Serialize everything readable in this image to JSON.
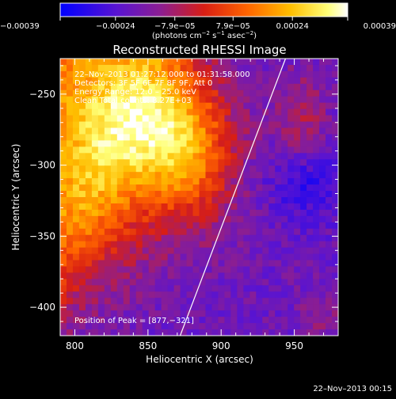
{
  "chart_data": {
    "type": "heatmap",
    "title": "Reconstructed RHESSI Image",
    "xlabel": "Heliocentric X (arcsec)",
    "ylabel": "Heliocentric Y (arcsec)",
    "xlim": [
      790,
      980
    ],
    "ylim": [
      -420,
      -225
    ],
    "x_ticks": [
      800,
      850,
      900,
      950
    ],
    "y_ticks": [
      -250,
      -300,
      -350,
      -400
    ],
    "x_tick_labels": [
      "800",
      "850",
      "900",
      "950"
    ],
    "y_tick_labels": [
      "−250",
      "−300",
      "−350",
      "−400"
    ],
    "colorbar": {
      "min": -0.00039,
      "max": 0.00039,
      "ticks": [
        -0.00039,
        -0.00024,
        -7.9e-05,
        7.9e-05,
        0.00024,
        0.00039
      ],
      "tick_labels": [
        "−0.00039",
        "−0.00024",
        "−7.9e−05",
        "7.9e−05",
        "0.00024",
        "0.00039"
      ],
      "units_text": "(photons cm",
      "units_sup1": "−2",
      "units_mid": " s",
      "units_sup2": "−1",
      "units_mid2": " asec",
      "units_sup3": "−2",
      "units_end": ")"
    },
    "info_lines": [
      "22–Nov–2013 01:27:12.000 to 01:31:58.000",
      "Detectors: 3F 5F 6F 7F 8F 9F, Att 0",
      "Energy Range: 12.0 – 25.0 keV",
      "Clean    Total counts: 8.27E+03"
    ],
    "peak_text": "Position of Peak = [877,−321]",
    "peak_position": [
      877,
      -321
    ],
    "limb_line": [
      [
        872,
        -420
      ],
      [
        944,
        -225
      ]
    ],
    "grid": false
  },
  "footer": {
    "timestamp": "22–Nov–2013 00:15"
  },
  "colors": {
    "background": "#000000",
    "text": "#ffffff",
    "colormap": [
      "#0000ff",
      "#5a14d0",
      "#8c1e91",
      "#d81e14",
      "#ff6400",
      "#ffbe00",
      "#ffff78",
      "#ffffff"
    ]
  }
}
